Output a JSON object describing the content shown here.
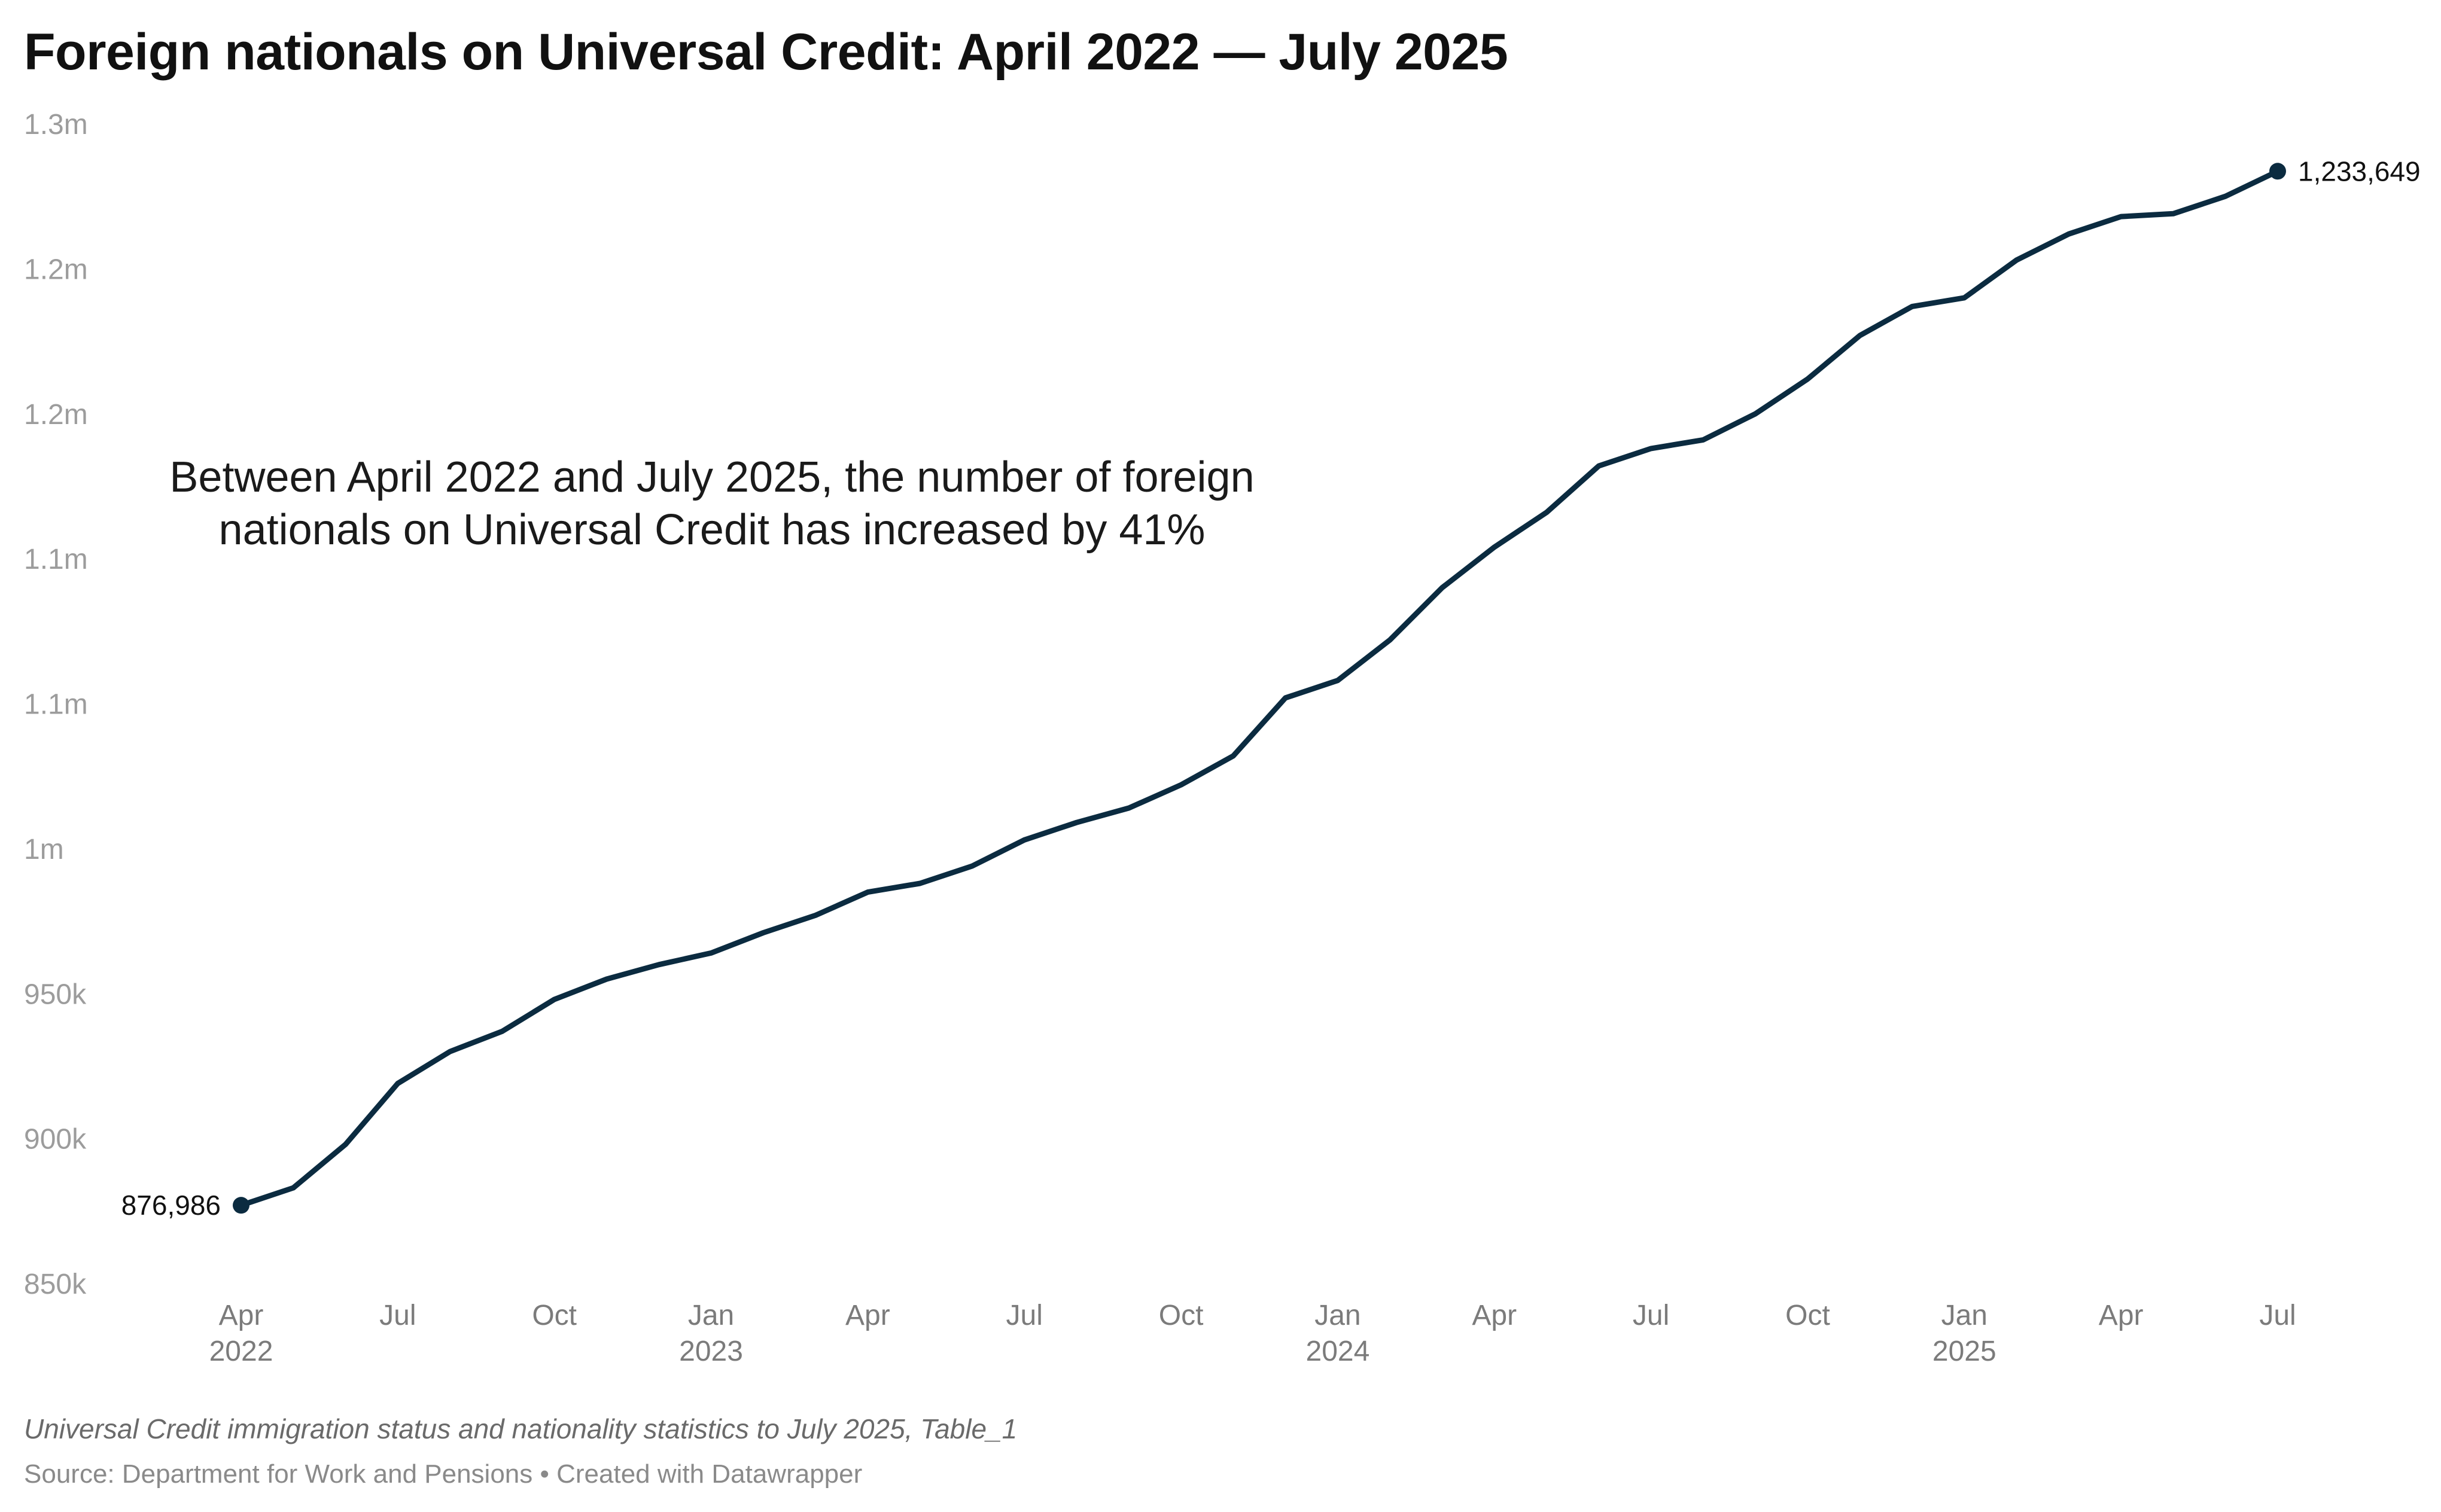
{
  "colors": {
    "line": "#0b2b40",
    "grid_text": "#9c9c9c",
    "x_text": "#7b7b7b"
  },
  "footer": {
    "caption": "Universal Credit immigration status and nationality statistics to July 2025, Table_1",
    "source": "Source: Department for Work and Pensions • Created with Datawrapper"
  },
  "chart_data": {
    "type": "line",
    "title": "Foreign nationals on Universal Credit: April 2022 — July 2025",
    "xlabel": "",
    "ylabel": "",
    "ylim": [
      850000,
      1250000
    ],
    "y_ticks": [
      {
        "value": 850000,
        "label": "850k"
      },
      {
        "value": 900000,
        "label": "900k"
      },
      {
        "value": 950000,
        "label": "950k"
      },
      {
        "value": 1000000,
        "label": "1m"
      },
      {
        "value": 1050000,
        "label": "1.1m"
      },
      {
        "value": 1100000,
        "label": "1.1m"
      },
      {
        "value": 1150000,
        "label": "1.2m"
      },
      {
        "value": 1200000,
        "label": "1.2m"
      },
      {
        "value": 1250000,
        "label": "1.3m"
      }
    ],
    "x_ticks": [
      {
        "index": 0,
        "label": "Apr",
        "year": "2022"
      },
      {
        "index": 3,
        "label": "Jul",
        "year": ""
      },
      {
        "index": 6,
        "label": "Oct",
        "year": ""
      },
      {
        "index": 9,
        "label": "Jan",
        "year": "2023"
      },
      {
        "index": 12,
        "label": "Apr",
        "year": ""
      },
      {
        "index": 15,
        "label": "Jul",
        "year": ""
      },
      {
        "index": 18,
        "label": "Oct",
        "year": ""
      },
      {
        "index": 21,
        "label": "Jan",
        "year": "2024"
      },
      {
        "index": 24,
        "label": "Apr",
        "year": ""
      },
      {
        "index": 27,
        "label": "Jul",
        "year": ""
      },
      {
        "index": 30,
        "label": "Oct",
        "year": ""
      },
      {
        "index": 33,
        "label": "Jan",
        "year": "2025"
      },
      {
        "index": 36,
        "label": "Apr",
        "year": ""
      },
      {
        "index": 39,
        "label": "Jul",
        "year": ""
      }
    ],
    "series": [
      {
        "name": "Foreign nationals on Universal Credit",
        "start": "2022-04",
        "frequency": "monthly",
        "values": [
          876986,
          883000,
          898000,
          919000,
          930000,
          937000,
          948000,
          955000,
          960000,
          964000,
          971000,
          977000,
          985000,
          988000,
          994000,
          1003000,
          1009000,
          1014000,
          1022000,
          1032000,
          1052000,
          1058000,
          1072000,
          1090000,
          1104000,
          1116000,
          1132000,
          1138000,
          1141000,
          1150000,
          1162000,
          1177000,
          1187000,
          1190000,
          1203000,
          1212000,
          1218000,
          1219000,
          1225000,
          1233649
        ]
      }
    ],
    "start_label": "876,986",
    "end_label": "1,233,649",
    "annotation": {
      "lines": [
        "Between April 2022 and July 2025, the number of foreign",
        "nationals on Universal Credit has increased by 41%"
      ]
    }
  }
}
